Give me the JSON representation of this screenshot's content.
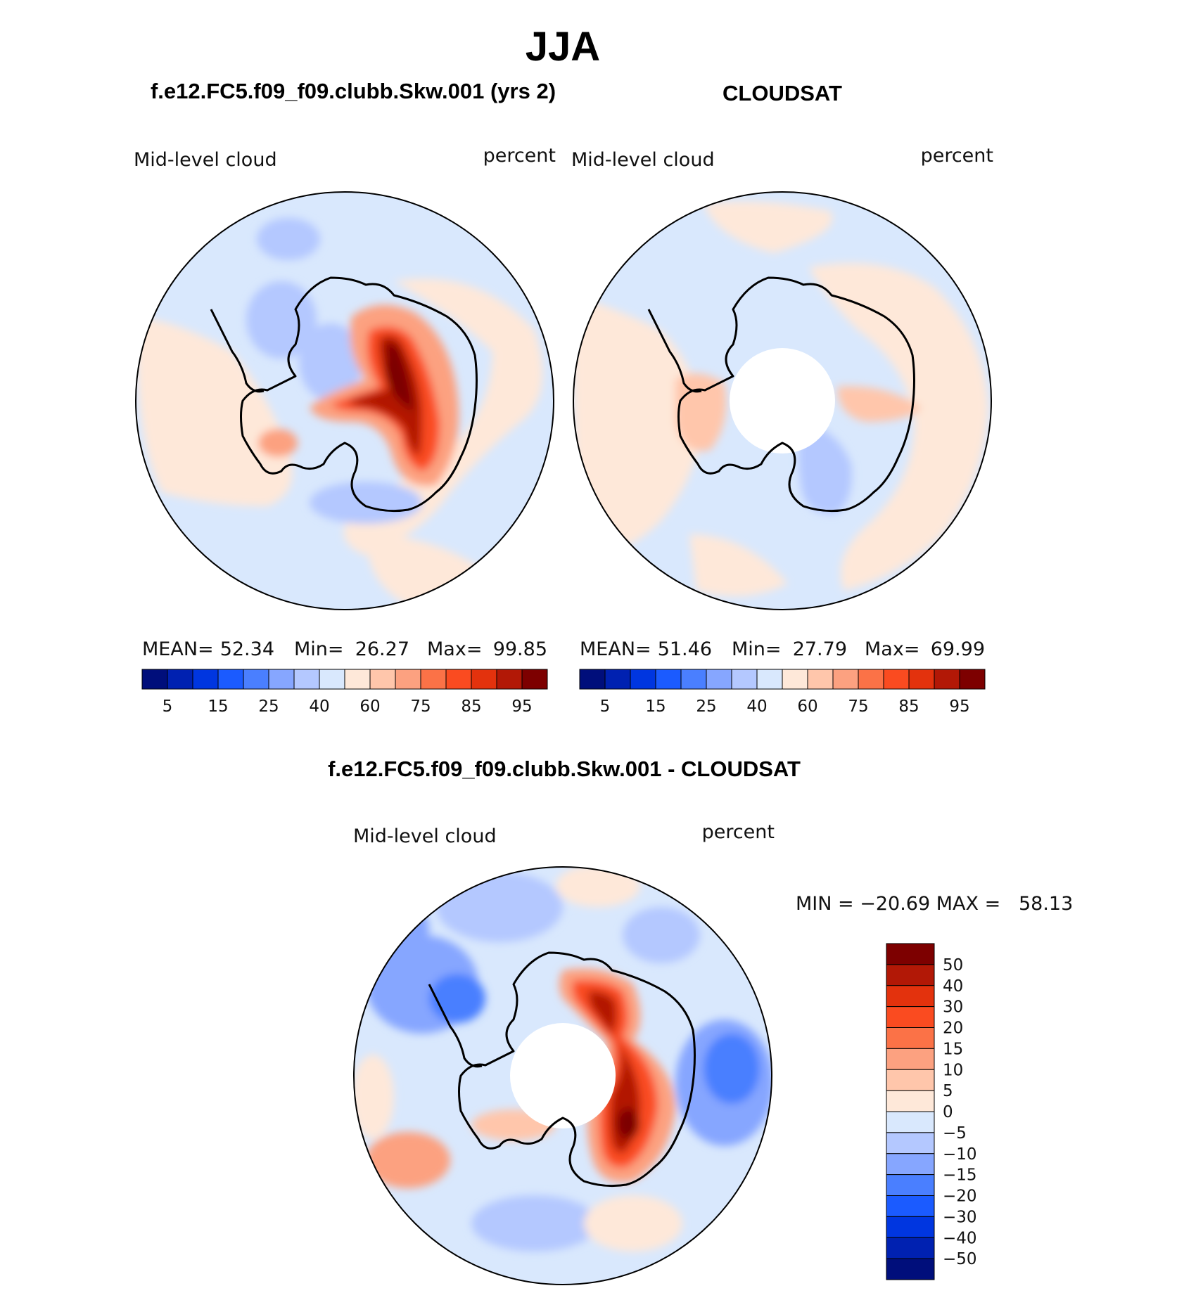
{
  "figure": {
    "title": "JJA",
    "panel_left_title": "f.e12.FC5.f09_f09.clubb.Skw.001 (yrs 2)",
    "panel_right_title": "CLOUDSAT",
    "diff_title": "f.e12.FC5.f09_f09.clubb.Skw.001 - CLOUDSAT"
  },
  "colors": {
    "abs_palette": [
      "#000e7b",
      "#0021b1",
      "#0036e0",
      "#1b5bff",
      "#4a7fff",
      "#86a6ff",
      "#b4c8ff",
      "#d9e8fd",
      "#fee8d9",
      "#ffc6ab",
      "#fca180",
      "#fb7247",
      "#fa4b20",
      "#e3320d",
      "#b21806",
      "#7d0000"
    ],
    "diff_palette": [
      "#000e7b",
      "#0021b1",
      "#0036e0",
      "#1b5bff",
      "#4a7fff",
      "#86a6ff",
      "#b4c8ff",
      "#d9e8fd",
      "#fee8d9",
      "#ffc6ab",
      "#fca180",
      "#fb7247",
      "#fa4b20",
      "#e3320d",
      "#b21806",
      "#7d0000"
    ]
  },
  "chart_data": [
    {
      "type": "heatmap",
      "projection": "south-polar-stereographic",
      "title": "f.e12.FC5.f09_f09.clubb.Skw.001 (yrs 2)",
      "left_label": "Mid-level cloud",
      "right_label": "percent",
      "stats": {
        "mean_label": "MEAN=",
        "mean": "52.34",
        "min_label": "Min=",
        "min": "26.27",
        "max_label": "Max=",
        "max": "99.85"
      },
      "levels": [
        5,
        10,
        15,
        20,
        25,
        30,
        40,
        50,
        60,
        70,
        75,
        80,
        85,
        90,
        95
      ],
      "tick_labels": [
        "5",
        "15",
        "25",
        "40",
        "60",
        "75",
        "85",
        "95"
      ],
      "colorbar_orientation": "horizontal"
    },
    {
      "type": "heatmap",
      "projection": "south-polar-stereographic",
      "title": "CLOUDSAT",
      "left_label": "Mid-level cloud",
      "right_label": "percent",
      "stats": {
        "mean_label": "MEAN=",
        "mean": "51.46",
        "min_label": "Min=",
        "min": "27.79",
        "max_label": "Max=",
        "max": "69.99"
      },
      "levels": [
        5,
        10,
        15,
        20,
        25,
        30,
        40,
        50,
        60,
        70,
        75,
        80,
        85,
        90,
        95
      ],
      "tick_labels": [
        "5",
        "15",
        "25",
        "40",
        "60",
        "75",
        "85",
        "95"
      ],
      "colorbar_orientation": "horizontal",
      "missing_data": "polar gap near the pole"
    },
    {
      "type": "heatmap",
      "projection": "south-polar-stereographic",
      "title": "f.e12.FC5.f09_f09.clubb.Skw.001 - CLOUDSAT",
      "left_label": "Mid-level cloud",
      "right_label": "percent",
      "stats_text": "MIN = −20.69 MAX =   58.13",
      "levels": [
        -50,
        -40,
        -30,
        -20,
        -15,
        -10,
        -5,
        0,
        5,
        10,
        15,
        20,
        30,
        40,
        50
      ],
      "tick_labels": [
        "50",
        "40",
        "30",
        "20",
        "15",
        "10",
        "5",
        "0",
        "−5",
        "−10",
        "−15",
        "−20",
        "−30",
        "−40",
        "−50"
      ],
      "colorbar_orientation": "vertical",
      "missing_data": "polar gap near the pole"
    }
  ]
}
